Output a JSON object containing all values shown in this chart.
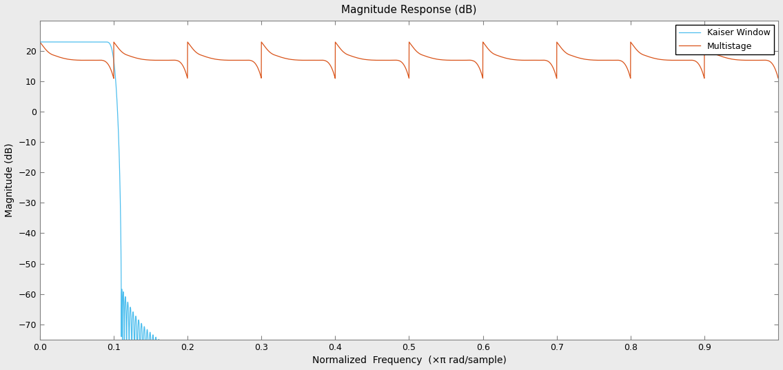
{
  "title": "Magnitude Response (dB)",
  "xlabel": "Normalized  Frequency  (×π rad/sample)",
  "ylabel": "Magnitude (dB)",
  "xlim": [
    0,
    1.0
  ],
  "ylim": [
    -75,
    30
  ],
  "yticks": [
    -70,
    -60,
    -50,
    -40,
    -30,
    -20,
    -10,
    0,
    10,
    20
  ],
  "xticks": [
    0,
    0.1,
    0.2,
    0.3,
    0.4,
    0.5,
    0.6,
    0.7,
    0.8,
    0.9
  ],
  "kaiser_color": "#4DBEEE",
  "multistage_color": "#D95319",
  "background_color": "#EBEBEB",
  "axes_background": "#FFFFFF",
  "grid_color": "#FFFFFF",
  "legend_labels": [
    "Kaiser Window",
    "Multistage"
  ],
  "title_fontsize": 11,
  "label_fontsize": 10
}
